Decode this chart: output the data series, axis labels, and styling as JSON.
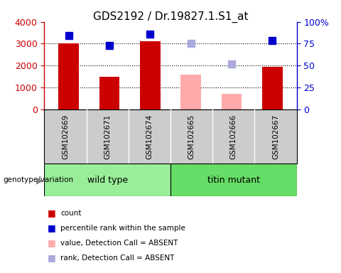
{
  "title": "GDS2192 / Dr.19827.1.S1_at",
  "samples": [
    "GSM102669",
    "GSM102671",
    "GSM102674",
    "GSM102665",
    "GSM102666",
    "GSM102667"
  ],
  "bar_values": [
    3000,
    1480,
    3120,
    1580,
    700,
    1950
  ],
  "bar_absent": [
    false,
    false,
    false,
    true,
    true,
    false
  ],
  "rank_values": [
    84,
    73,
    86,
    75,
    52,
    79
  ],
  "rank_absent": [
    false,
    false,
    false,
    true,
    true,
    false
  ],
  "bar_color_present": "#cc0000",
  "bar_color_absent": "#ffaaaa",
  "rank_color_present": "#0000cc",
  "rank_color_absent": "#aaaadd",
  "ylim_left": [
    0,
    4000
  ],
  "ylim_right": [
    0,
    100
  ],
  "yticks_left": [
    0,
    1000,
    2000,
    3000,
    4000
  ],
  "yticks_right": [
    0,
    25,
    50,
    75,
    100
  ],
  "group_colors": {
    "wild type": "#99ee99",
    "titin mutant": "#66dd66"
  },
  "bg_color": "#cccccc",
  "bar_width": 0.5,
  "legend_items": [
    {
      "color": "#cc0000",
      "label": "count"
    },
    {
      "color": "#0000cc",
      "label": "percentile rank within the sample"
    },
    {
      "color": "#ffaaaa",
      "label": "value, Detection Call = ABSENT"
    },
    {
      "color": "#aaaadd",
      "label": "rank, Detection Call = ABSENT"
    }
  ]
}
